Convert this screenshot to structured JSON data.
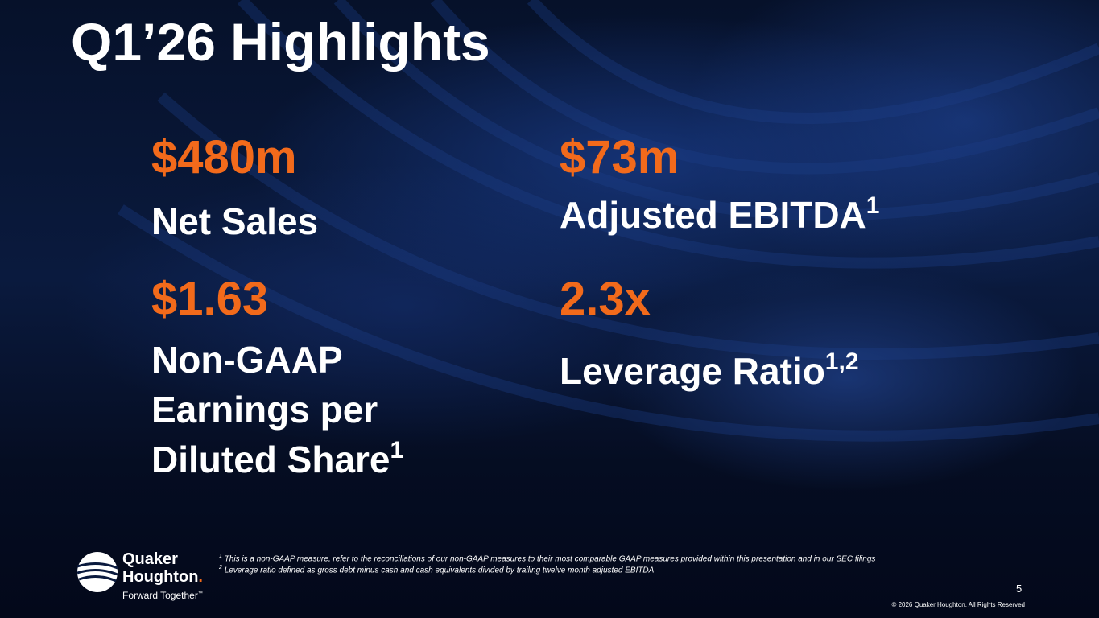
{
  "title": "Q1’26 Highlights",
  "metrics": [
    {
      "value": "$480m",
      "label": "Net Sales"
    },
    {
      "value": "$73m",
      "label": "Adjusted EBITDA",
      "note": "1"
    },
    {
      "value": "$1.63",
      "label": "Non-GAAP Earnings per Diluted Share",
      "note": "1"
    },
    {
      "value": "2.3x",
      "label": "Leverage Ratio",
      "note": "1,2"
    }
  ],
  "footnotes": [
    {
      "marker": "1",
      "text": "This is a non-GAAP measure, refer to the reconciliations of our non-GAAP measures to their most comparable GAAP measures provided within this presentation and in our SEC filings"
    },
    {
      "marker": "2",
      "text": "Leverage ratio defined as gross debt minus cash and cash equivalents divided by trailing twelve month adjusted EBITDA"
    }
  ],
  "logo": {
    "line1": "Quaker",
    "line2": "Houghton",
    "mark": ".",
    "tagline": "Forward Together",
    "tm": "™"
  },
  "page_number": "5",
  "copyright": "© 2026 Quaker Houghton. All Rights Reserved"
}
